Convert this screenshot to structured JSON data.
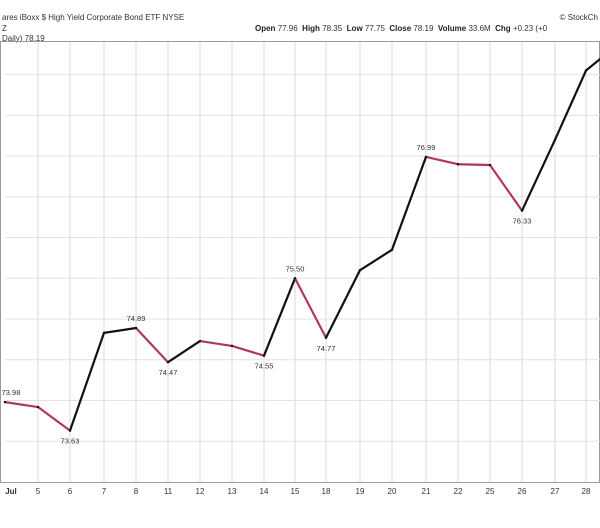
{
  "header": {
    "title": "ares iBoxx $ High Yield Corporate Bond ETF  NYSE",
    "subtitle": "Z",
    "series_label": "Daily) 78.19",
    "watermark": "© StockCh",
    "ohlc": {
      "open_label": "Open",
      "open": "77.96",
      "high_label": "High",
      "high": "78.35",
      "low_label": "Low",
      "low": "77.75",
      "close_label": "Close",
      "close": "78.19",
      "volume_label": "Volume",
      "volume": "33.6M",
      "chg_label": "Chg",
      "chg": "+0.23 (+0"
    }
  },
  "chart_data": {
    "type": "line",
    "title": "",
    "xlabel": "",
    "ylabel": "",
    "categories": [
      "Jul",
      "5",
      "6",
      "7",
      "8",
      "11",
      "12",
      "13",
      "14",
      "15",
      "18",
      "19",
      "20",
      "21",
      "22",
      "25",
      "26",
      "27",
      "28",
      ""
    ],
    "values": [
      73.98,
      73.92,
      73.63,
      74.83,
      74.89,
      74.47,
      74.73,
      74.67,
      74.55,
      75.5,
      74.77,
      75.6,
      75.85,
      76.99,
      76.9,
      76.89,
      76.33,
      77.2,
      78.05,
      78.19
    ],
    "down_color": "#b0385a",
    "up_color": "#111111",
    "grid": true,
    "ylim": [
      73.0,
      78.4
    ],
    "point_labels": [
      {
        "index": 0,
        "text": "73.98"
      },
      {
        "index": 2,
        "text": "73.63"
      },
      {
        "index": 4,
        "text": "74.89"
      },
      {
        "index": 5,
        "text": "74.47"
      },
      {
        "index": 8,
        "text": "74.55"
      },
      {
        "index": 9,
        "text": "75.50"
      },
      {
        "index": 10,
        "text": "74.77"
      },
      {
        "index": 13,
        "text": "76.99"
      },
      {
        "index": 16,
        "text": "76.33"
      }
    ]
  }
}
